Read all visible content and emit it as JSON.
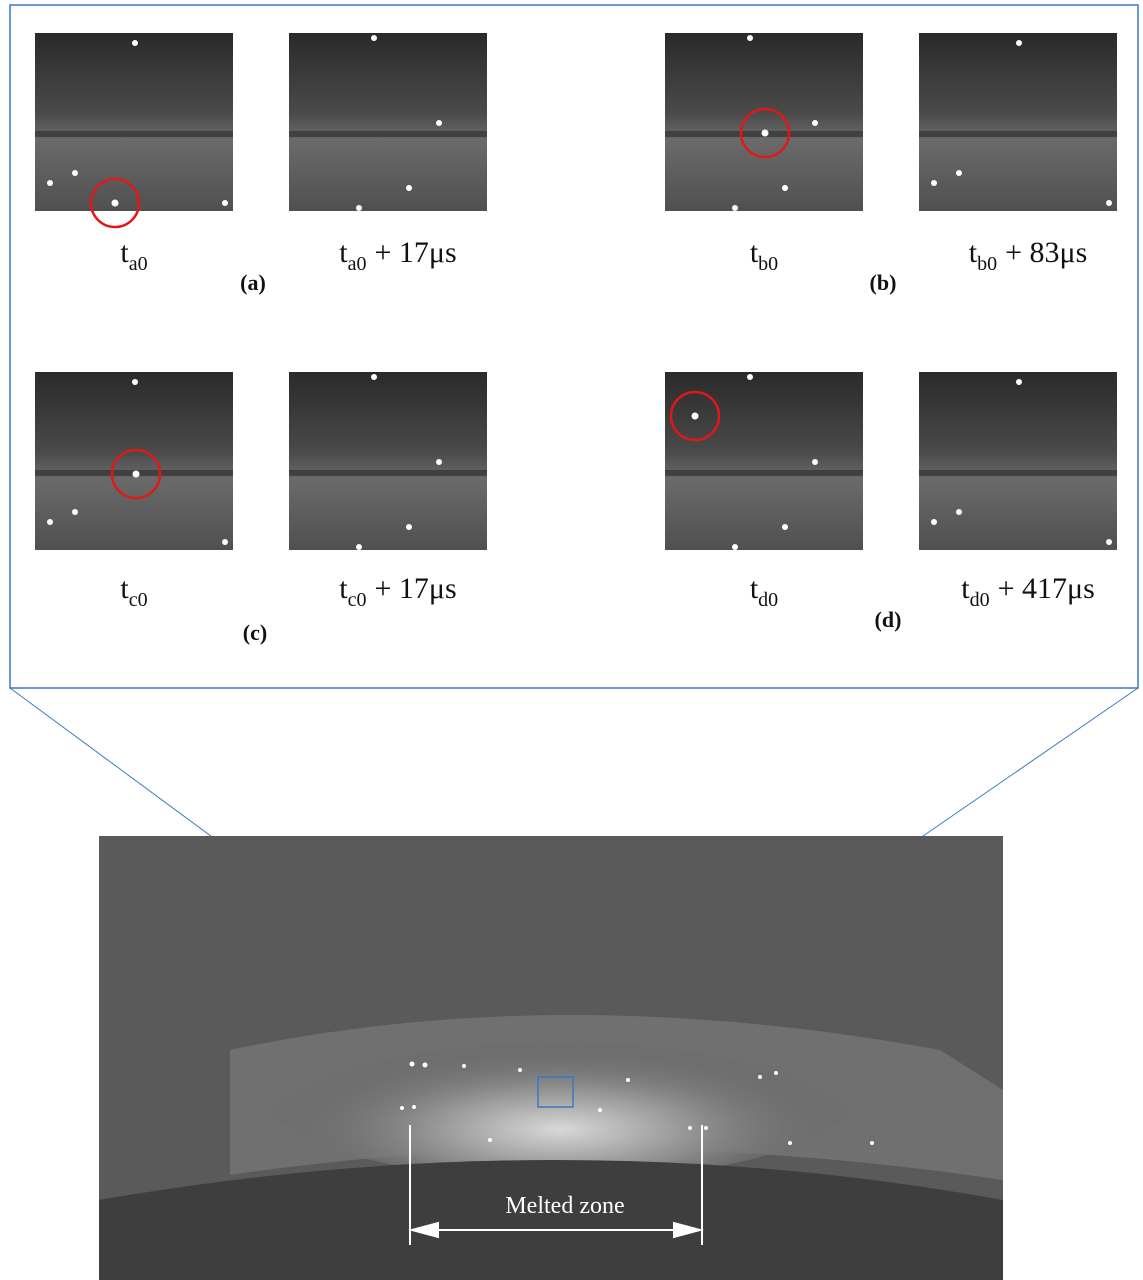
{
  "panels": [
    {
      "label": "(a)",
      "frames": [
        {
          "base": "t",
          "sub": "a0"
        },
        {
          "base": "t",
          "sub": "a0",
          "suffix": "+ 17μs"
        }
      ]
    },
    {
      "label": "(b)",
      "frames": [
        {
          "base": "t",
          "sub": "b0"
        },
        {
          "base": "t",
          "sub": "b0",
          "suffix": "+ 83μs"
        }
      ]
    },
    {
      "label": "(c)",
      "frames": [
        {
          "base": "t",
          "sub": "c0"
        },
        {
          "base": "t",
          "sub": "c0",
          "suffix": "+ 17μs"
        }
      ]
    },
    {
      "label": "(d)",
      "frames": [
        {
          "base": "t",
          "sub": "d0"
        },
        {
          "base": "t",
          "sub": "d0",
          "suffix": "+ 417μs"
        }
      ]
    }
  ],
  "annotation": "Melted zone"
}
